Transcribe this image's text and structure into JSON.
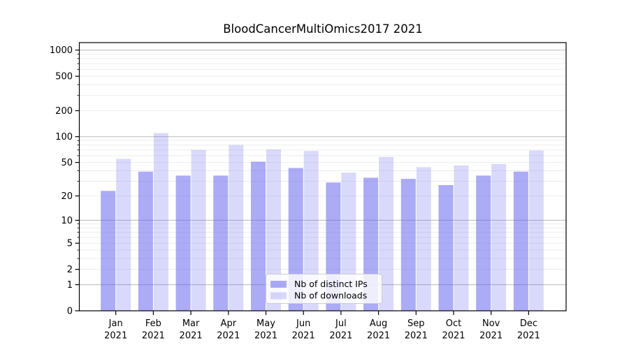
{
  "figure": {
    "background": "#ffffff"
  },
  "chart_data": {
    "type": "bar",
    "title": "BloodCancerMultiOmics2017 2021",
    "categories": [
      "Jan",
      "Feb",
      "Mar",
      "Apr",
      "May",
      "Jun",
      "Jul",
      "Aug",
      "Sep",
      "Oct",
      "Nov",
      "Dec"
    ],
    "year_label": "2021",
    "series": [
      {
        "name": "Nb of distinct IPs",
        "values": [
          23,
          39,
          35,
          35,
          51,
          43,
          29,
          33,
          32,
          27,
          35,
          39
        ],
        "color": "#6666ee",
        "opacity": 0.55
      },
      {
        "name": "Nb of downloads",
        "values": [
          55,
          110,
          70,
          80,
          71,
          68,
          38,
          58,
          44,
          46,
          48,
          69
        ],
        "color": "#6666ee",
        "opacity": 0.25
      }
    ],
    "yscale": "log1p",
    "ylim": [
      0,
      1250
    ],
    "y_ticks": [
      0,
      1,
      2,
      5,
      10,
      20,
      50,
      100,
      200,
      500,
      1000
    ],
    "y_minor_ticks": [
      2,
      3,
      4,
      5,
      6,
      7,
      8,
      9,
      20,
      30,
      40,
      50,
      60,
      70,
      80,
      90,
      200,
      300,
      400,
      500,
      600,
      700,
      800,
      900
    ],
    "xlabel": "",
    "ylabel": "",
    "grid": "horizontal",
    "legend_position": "lower center",
    "colors": {
      "major_grid": "#c8c8c8",
      "minor_grid": "#ededed",
      "axis": "#000000",
      "legend_border": "#cccccc",
      "legend_background": "rgba(255,255,255,0.8)"
    }
  }
}
